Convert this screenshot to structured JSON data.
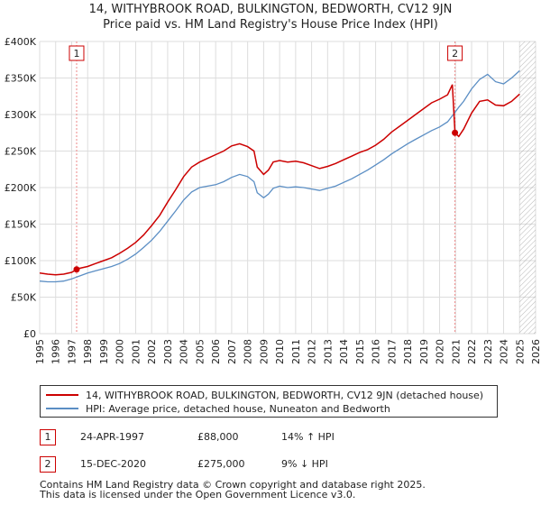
{
  "title_line1": "14, WITHYBROOK ROAD, BULKINGTON, BEDWORTH, CV12 9JN",
  "title_line2": "Price paid vs. HM Land Registry's House Price Index (HPI)",
  "colors": {
    "property": "#cc0000",
    "hpi": "#5b8ec4",
    "grid": "#dddddd",
    "marker_line": "#ee8888",
    "future_hatch": "#999999"
  },
  "chart_data": {
    "type": "line",
    "xlim": [
      1995,
      2026
    ],
    "ylim": [
      0,
      400000
    ],
    "y_ticks": [
      0,
      50000,
      100000,
      150000,
      200000,
      250000,
      300000,
      350000,
      400000
    ],
    "y_tick_labels": [
      "£0",
      "£50K",
      "£100K",
      "£150K",
      "£200K",
      "£250K",
      "£300K",
      "£350K",
      "£400K"
    ],
    "x_ticks": [
      1995,
      1996,
      1997,
      1998,
      1999,
      2000,
      2001,
      2002,
      2003,
      2004,
      2005,
      2006,
      2007,
      2008,
      2009,
      2010,
      2011,
      2012,
      2013,
      2014,
      2015,
      2016,
      2017,
      2018,
      2019,
      2020,
      2021,
      2022,
      2023,
      2024,
      2025,
      2026
    ],
    "x_tick_labels": [
      "1995",
      "1996",
      "1997",
      "1998",
      "1999",
      "2000",
      "2001",
      "2002",
      "2003",
      "2004",
      "2005",
      "2006",
      "2007",
      "2008",
      "2009",
      "2010",
      "2011",
      "2012",
      "2013",
      "2014",
      "2015",
      "2016",
      "2017",
      "2018",
      "2019",
      "2020",
      "2021",
      "2022",
      "2023",
      "2024",
      "2025",
      "2026"
    ],
    "grid": true,
    "future_hatch_from": 2025.0,
    "series": [
      {
        "name": "14, WITHYBROOK ROAD, BULKINGTON, BEDWORTH, CV12 9JN (detached house)",
        "color": "#cc0000",
        "x": [
          1995.0,
          1995.5,
          1996.0,
          1996.5,
          1997.0,
          1997.31,
          1997.5,
          1998.0,
          1998.5,
          1999.0,
          1999.5,
          2000.0,
          2000.5,
          2001.0,
          2001.5,
          2002.0,
          2002.5,
          2003.0,
          2003.5,
          2004.0,
          2004.5,
          2005.0,
          2005.5,
          2006.0,
          2006.5,
          2007.0,
          2007.5,
          2008.0,
          2008.4,
          2008.6,
          2009.0,
          2009.3,
          2009.6,
          2010.0,
          2010.5,
          2011.0,
          2011.5,
          2012.0,
          2012.5,
          2013.0,
          2013.5,
          2014.0,
          2014.5,
          2015.0,
          2015.5,
          2016.0,
          2016.5,
          2017.0,
          2017.5,
          2018.0,
          2018.5,
          2019.0,
          2019.5,
          2020.0,
          2020.5,
          2020.8,
          2020.96,
          2021.2,
          2021.5,
          2022.0,
          2022.5,
          2023.0,
          2023.5,
          2024.0,
          2024.5,
          2025.0
        ],
        "values": [
          83000,
          81500,
          80500,
          81500,
          84000,
          88000,
          89500,
          92000,
          96000,
          100000,
          104000,
          110000,
          117000,
          125000,
          135000,
          148000,
          162000,
          180000,
          197000,
          215000,
          228000,
          235000,
          240000,
          245000,
          250000,
          257000,
          260000,
          256000,
          250000,
          228000,
          218000,
          224000,
          235000,
          237000,
          235000,
          236000,
          234000,
          230000,
          226000,
          229000,
          233000,
          238000,
          243000,
          248000,
          252000,
          258000,
          266000,
          276000,
          284000,
          292000,
          300000,
          308000,
          316000,
          321000,
          327000,
          341000,
          275000,
          270000,
          280000,
          302000,
          318000,
          320000,
          313000,
          312000,
          318000,
          328000
        ]
      },
      {
        "name": "HPI: Average price, detached house, Nuneaton and Bedworth",
        "color": "#5b8ec4",
        "x": [
          1995.0,
          1995.5,
          1996.0,
          1996.5,
          1997.0,
          1997.31,
          1997.5,
          1998.0,
          1998.5,
          1999.0,
          1999.5,
          2000.0,
          2000.5,
          2001.0,
          2001.5,
          2002.0,
          2002.5,
          2003.0,
          2003.5,
          2004.0,
          2004.5,
          2005.0,
          2005.5,
          2006.0,
          2006.5,
          2007.0,
          2007.5,
          2008.0,
          2008.4,
          2008.6,
          2009.0,
          2009.3,
          2009.6,
          2010.0,
          2010.5,
          2011.0,
          2011.5,
          2012.0,
          2012.5,
          2013.0,
          2013.5,
          2014.0,
          2014.5,
          2015.0,
          2015.5,
          2016.0,
          2016.5,
          2017.0,
          2017.5,
          2018.0,
          2018.5,
          2019.0,
          2019.5,
          2020.0,
          2020.5,
          2020.96,
          2021.2,
          2021.5,
          2022.0,
          2022.5,
          2023.0,
          2023.5,
          2024.0,
          2024.5,
          2025.0
        ],
        "values": [
          72000,
          71000,
          71000,
          72000,
          75000,
          77500,
          79000,
          83000,
          86000,
          89000,
          92000,
          96000,
          102000,
          109000,
          118000,
          128000,
          140000,
          154000,
          168000,
          183000,
          194000,
          200000,
          202000,
          204000,
          208000,
          214000,
          218000,
          215000,
          208000,
          193000,
          186000,
          191000,
          199000,
          202000,
          200000,
          201000,
          200000,
          198000,
          196000,
          199000,
          202000,
          207000,
          212000,
          218000,
          224000,
          231000,
          238000,
          246000,
          253000,
          260000,
          266000,
          272000,
          278000,
          283000,
          290000,
          303000,
          310000,
          318000,
          335000,
          348000,
          355000,
          345000,
          342000,
          350000,
          360000
        ]
      }
    ],
    "markers": [
      {
        "label": "1",
        "x": 1997.31,
        "y": 88000
      },
      {
        "label": "2",
        "x": 2020.96,
        "y": 275000
      }
    ]
  },
  "legend": {
    "property_label": "14, WITHYBROOK ROAD, BULKINGTON, BEDWORTH, CV12 9JN (detached house)",
    "hpi_label": "HPI: Average price, detached house, Nuneaton and Bedworth"
  },
  "sales": [
    {
      "id": "1",
      "date": "24-APR-1997",
      "price": "£88,000",
      "hpi": "14% ↑ HPI"
    },
    {
      "id": "2",
      "date": "15-DEC-2020",
      "price": "£275,000",
      "hpi": "9% ↓ HPI"
    }
  ],
  "footer_line1": "Contains HM Land Registry data © Crown copyright and database right 2025.",
  "footer_line2": "This data is licensed under the Open Government Licence v3.0."
}
